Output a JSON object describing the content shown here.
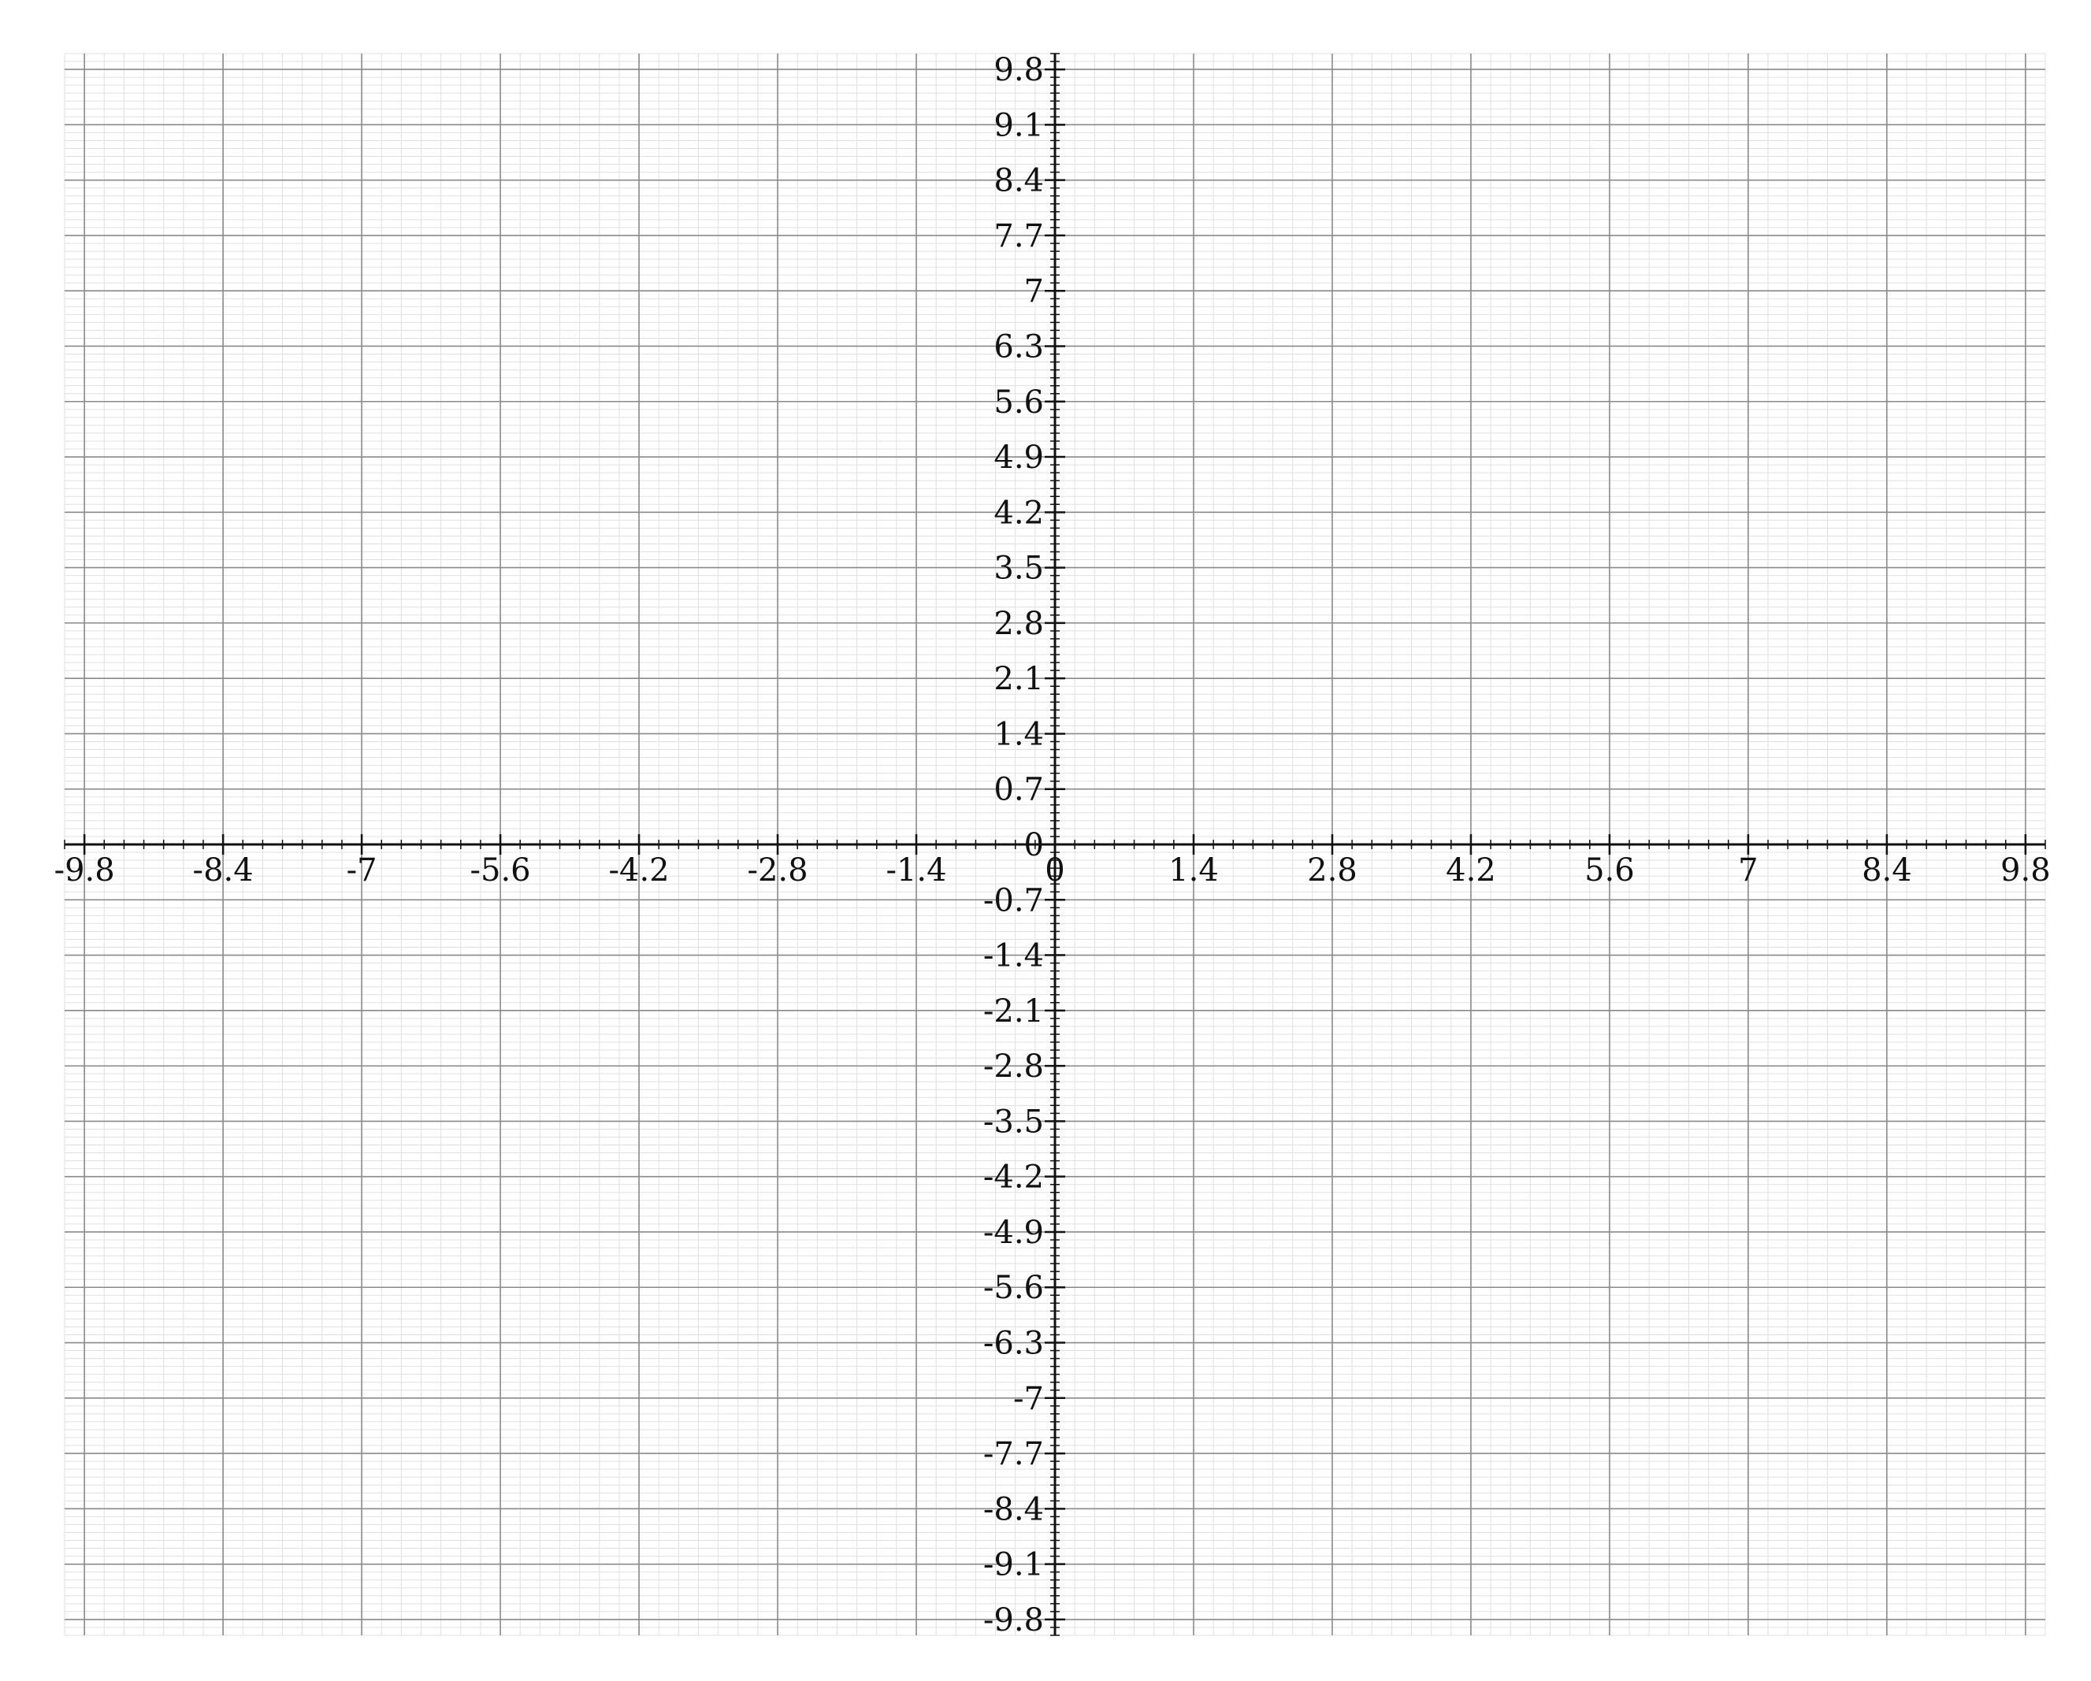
{
  "chart_data": {
    "type": "scatter",
    "title": "",
    "xlabel": "",
    "ylabel": "",
    "xlim": [
      -10.0,
      10.0
    ],
    "ylim": [
      -10.0,
      10.0
    ],
    "x_ticks": [
      -9.8,
      -8.4,
      -7,
      -5.6,
      -4.2,
      -2.8,
      -1.4,
      0,
      1.4,
      2.8,
      4.2,
      5.6,
      7,
      8.4,
      9.8
    ],
    "x_tick_labels": [
      "-9.8",
      "-8.4",
      "-7",
      "-5.6",
      "-4.2",
      "-2.8",
      "-1.4",
      "0",
      "1.4",
      "2.8",
      "4.2",
      "5.6",
      "7",
      "8.4",
      "9.8"
    ],
    "y_ticks": [
      9.8,
      9.1,
      8.4,
      7.7,
      7,
      6.3,
      5.6,
      4.9,
      4.2,
      3.5,
      2.8,
      2.1,
      1.4,
      0.7,
      0,
      -0.7,
      -1.4,
      -2.1,
      -2.8,
      -3.5,
      -4.2,
      -4.9,
      -5.6,
      -6.3,
      -7,
      -7.7,
      -8.4,
      -9.1,
      -9.8
    ],
    "y_tick_labels": [
      "9.8",
      "9.1",
      "8.4",
      "7.7",
      "7",
      "6.3",
      "5.6",
      "4.9",
      "4.2",
      "3.5",
      "2.8",
      "2.1",
      "1.4",
      "0.7",
      "0",
      "-0.7",
      "-1.4",
      "-2.1",
      "-2.8",
      "-3.5",
      "-4.2",
      "-4.9",
      "-5.6",
      "-6.3",
      "-7",
      "-7.7",
      "-8.4",
      "-9.1",
      "-9.8"
    ],
    "x_minor_step": 0.2,
    "y_minor_step": 0.1,
    "grid": true,
    "series": [],
    "colors": {
      "major_grid": "#8a8a8a",
      "minor_grid": "#e0e0e0",
      "axis": "#111111",
      "label": "#111111"
    }
  }
}
